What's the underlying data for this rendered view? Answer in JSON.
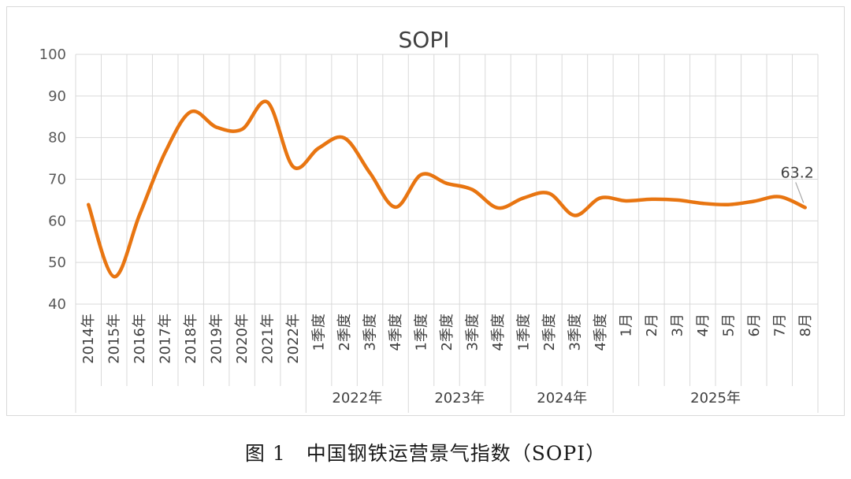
{
  "caption": "图 1　中国钢铁运营景气指数（SOPI）",
  "colors": {
    "line": "#E87511",
    "grid": "#d9d9d9",
    "text": "#595959"
  },
  "chart_data": {
    "type": "line",
    "title": "SOPI",
    "xlabel": "",
    "ylabel": "",
    "ylim": [
      40,
      100
    ],
    "yticks": [
      40,
      50,
      60,
      70,
      80,
      90,
      100
    ],
    "grid": true,
    "categories": [
      "2014年",
      "2015年",
      "2016年",
      "2017年",
      "2018年",
      "2019年",
      "2020年",
      "2021年",
      "2022年",
      "1季度",
      "2季度",
      "3季度",
      "4季度",
      "1季度",
      "2季度",
      "3季度",
      "4季度",
      "1季度",
      "2季度",
      "3季度",
      "4季度",
      "1月",
      "2月",
      "3月",
      "4月",
      "5月",
      "6月",
      "7月",
      "8月"
    ],
    "groups": [
      {
        "label": "2022年",
        "start": 9,
        "end": 12
      },
      {
        "label": "2023年",
        "start": 13,
        "end": 16
      },
      {
        "label": "2024年",
        "start": 17,
        "end": 20
      },
      {
        "label": "2025年",
        "start": 21,
        "end": 28
      }
    ],
    "series": [
      {
        "name": "SOPI",
        "values": [
          63.9,
          46.6,
          61.5,
          76.5,
          86.2,
          82.5,
          82.0,
          88.5,
          73.0,
          77.5,
          79.9,
          71.5,
          63.3,
          71.1,
          69.0,
          67.5,
          63.1,
          65.5,
          66.6,
          61.3,
          65.5,
          64.8,
          65.2,
          65.0,
          64.2,
          63.9,
          64.7,
          65.8,
          63.2
        ]
      }
    ],
    "annotation": {
      "index": 28,
      "text": "63.2"
    }
  }
}
